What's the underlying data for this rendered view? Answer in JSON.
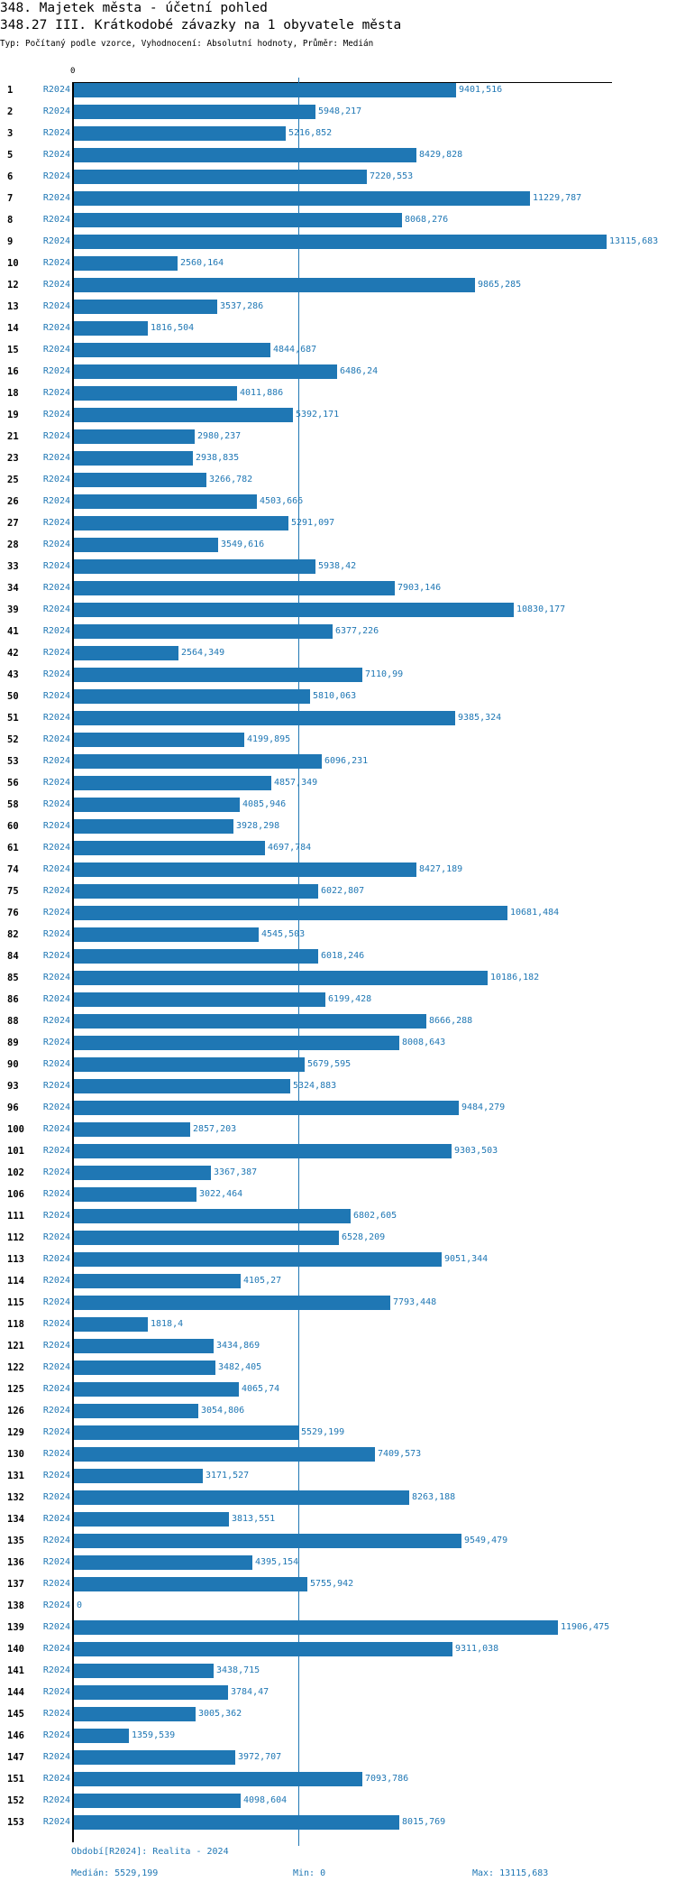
{
  "header": {
    "title": "348. Majetek města - účetní pohled",
    "subtitle": "348.27 III. Krátkodobé závazky na 1 obyvatele města",
    "type_line": "Typ: Počítaný podle vzorce, Vyhodnocení: Absolutní hodnoty, Průměr: Medián"
  },
  "colors": {
    "bar": "#1f77b4",
    "text": "#1f77b4"
  },
  "chart_data": {
    "type": "bar",
    "orientation": "horizontal",
    "axis_zero_label": "0",
    "series_label": "R2024",
    "median": 5529.199,
    "xlim": [
      0,
      13115.683
    ],
    "rows": [
      {
        "id": "1",
        "value": "9401,516"
      },
      {
        "id": "2",
        "value": "5948,217"
      },
      {
        "id": "3",
        "value": "5216,852"
      },
      {
        "id": "5",
        "value": "8429,828"
      },
      {
        "id": "6",
        "value": "7220,553"
      },
      {
        "id": "7",
        "value": "11229,787"
      },
      {
        "id": "8",
        "value": "8068,276"
      },
      {
        "id": "9",
        "value": "13115,683"
      },
      {
        "id": "10",
        "value": "2560,164"
      },
      {
        "id": "12",
        "value": "9865,285"
      },
      {
        "id": "13",
        "value": "3537,286"
      },
      {
        "id": "14",
        "value": "1816,504"
      },
      {
        "id": "15",
        "value": "4844,687"
      },
      {
        "id": "16",
        "value": "6486,24"
      },
      {
        "id": "18",
        "value": "4011,886"
      },
      {
        "id": "19",
        "value": "5392,171"
      },
      {
        "id": "21",
        "value": "2980,237"
      },
      {
        "id": "23",
        "value": "2938,835"
      },
      {
        "id": "25",
        "value": "3266,782"
      },
      {
        "id": "26",
        "value": "4503,666"
      },
      {
        "id": "27",
        "value": "5291,097"
      },
      {
        "id": "28",
        "value": "3549,616"
      },
      {
        "id": "33",
        "value": "5938,42"
      },
      {
        "id": "34",
        "value": "7903,146"
      },
      {
        "id": "39",
        "value": "10830,177"
      },
      {
        "id": "41",
        "value": "6377,226"
      },
      {
        "id": "42",
        "value": "2564,349"
      },
      {
        "id": "43",
        "value": "7110,99"
      },
      {
        "id": "50",
        "value": "5810,063"
      },
      {
        "id": "51",
        "value": "9385,324"
      },
      {
        "id": "52",
        "value": "4199,895"
      },
      {
        "id": "53",
        "value": "6096,231"
      },
      {
        "id": "56",
        "value": "4857,349"
      },
      {
        "id": "58",
        "value": "4085,946"
      },
      {
        "id": "60",
        "value": "3928,298"
      },
      {
        "id": "61",
        "value": "4697,784"
      },
      {
        "id": "74",
        "value": "8427,189"
      },
      {
        "id": "75",
        "value": "6022,807"
      },
      {
        "id": "76",
        "value": "10681,484"
      },
      {
        "id": "82",
        "value": "4545,503"
      },
      {
        "id": "84",
        "value": "6018,246"
      },
      {
        "id": "85",
        "value": "10186,182"
      },
      {
        "id": "86",
        "value": "6199,428"
      },
      {
        "id": "88",
        "value": "8666,288"
      },
      {
        "id": "89",
        "value": "8008,643"
      },
      {
        "id": "90",
        "value": "5679,595"
      },
      {
        "id": "93",
        "value": "5324,883"
      },
      {
        "id": "96",
        "value": "9484,279"
      },
      {
        "id": "100",
        "value": "2857,203"
      },
      {
        "id": "101",
        "value": "9303,503"
      },
      {
        "id": "102",
        "value": "3367,387"
      },
      {
        "id": "106",
        "value": "3022,464"
      },
      {
        "id": "111",
        "value": "6802,605"
      },
      {
        "id": "112",
        "value": "6528,209"
      },
      {
        "id": "113",
        "value": "9051,344"
      },
      {
        "id": "114",
        "value": "4105,27"
      },
      {
        "id": "115",
        "value": "7793,448"
      },
      {
        "id": "118",
        "value": "1818,4"
      },
      {
        "id": "121",
        "value": "3434,869"
      },
      {
        "id": "122",
        "value": "3482,405"
      },
      {
        "id": "125",
        "value": "4065,74"
      },
      {
        "id": "126",
        "value": "3054,806"
      },
      {
        "id": "129",
        "value": "5529,199"
      },
      {
        "id": "130",
        "value": "7409,573"
      },
      {
        "id": "131",
        "value": "3171,527"
      },
      {
        "id": "132",
        "value": "8263,188"
      },
      {
        "id": "134",
        "value": "3813,551"
      },
      {
        "id": "135",
        "value": "9549,479"
      },
      {
        "id": "136",
        "value": "4395,154"
      },
      {
        "id": "137",
        "value": "5755,942"
      },
      {
        "id": "138",
        "value": "0"
      },
      {
        "id": "139",
        "value": "11906,475"
      },
      {
        "id": "140",
        "value": "9311,038"
      },
      {
        "id": "141",
        "value": "3438,715"
      },
      {
        "id": "144",
        "value": "3784,47"
      },
      {
        "id": "145",
        "value": "3005,362"
      },
      {
        "id": "146",
        "value": "1359,539"
      },
      {
        "id": "147",
        "value": "3972,707"
      },
      {
        "id": "151",
        "value": "7093,786"
      },
      {
        "id": "152",
        "value": "4098,604"
      },
      {
        "id": "153",
        "value": "8015,769"
      }
    ]
  },
  "footer": {
    "period": "Období[R2024]: Realita - 2024",
    "median": "Medián: 5529,199",
    "min": "Min: 0",
    "max": "Max: 13115,683"
  }
}
